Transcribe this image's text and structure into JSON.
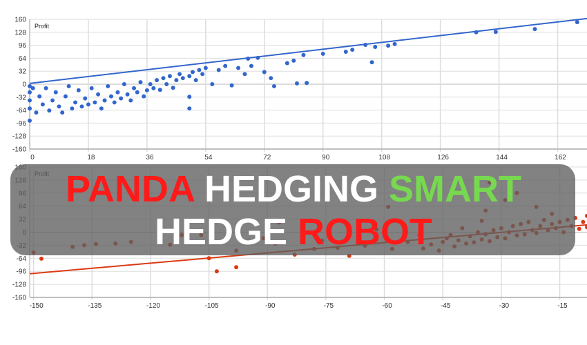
{
  "chart_data": [
    {
      "type": "scatter",
      "ylabel": "Profit",
      "xlim": [
        0,
        171
      ],
      "ylim": [
        -160,
        160
      ],
      "xticks": [
        "0",
        "18",
        "36",
        "54",
        "72",
        "90",
        "108",
        "126",
        "144",
        "162"
      ],
      "yticks": [
        "160",
        "128",
        "96",
        "64",
        "32",
        "0",
        "-32",
        "-64",
        "-96",
        "-128",
        "-160"
      ],
      "grid": true,
      "color": "#3366cc",
      "trendline": {
        "x": [
          0,
          171
        ],
        "y": [
          2,
          162
        ]
      },
      "points": [
        [
          0,
          -5
        ],
        [
          0,
          -20
        ],
        [
          0,
          -40
        ],
        [
          0,
          -60
        ],
        [
          0,
          -90
        ],
        [
          1,
          -10
        ],
        [
          2,
          -70
        ],
        [
          3,
          -30
        ],
        [
          4,
          -50
        ],
        [
          5,
          -10
        ],
        [
          6,
          -65
        ],
        [
          7,
          -40
        ],
        [
          8,
          -20
        ],
        [
          9,
          -55
        ],
        [
          10,
          -70
        ],
        [
          11,
          -30
        ],
        [
          12,
          -5
        ],
        [
          13,
          -60
        ],
        [
          14,
          -45
        ],
        [
          15,
          -15
        ],
        [
          16,
          -55
        ],
        [
          17,
          -35
        ],
        [
          18,
          -50
        ],
        [
          19,
          -10
        ],
        [
          20,
          -45
        ],
        [
          21,
          -25
        ],
        [
          22,
          -60
        ],
        [
          23,
          -40
        ],
        [
          24,
          -5
        ],
        [
          25,
          -30
        ],
        [
          26,
          -45
        ],
        [
          27,
          -20
        ],
        [
          28,
          -35
        ],
        [
          29,
          0
        ],
        [
          30,
          -25
        ],
        [
          31,
          -40
        ],
        [
          32,
          -10
        ],
        [
          33,
          -20
        ],
        [
          34,
          5
        ],
        [
          35,
          -30
        ],
        [
          36,
          -15
        ],
        [
          37,
          0
        ],
        [
          38,
          -10
        ],
        [
          39,
          10
        ],
        [
          40,
          -14
        ],
        [
          41,
          15
        ],
        [
          42,
          0
        ],
        [
          43,
          20
        ],
        [
          44,
          -9
        ],
        [
          45,
          10
        ],
        [
          46,
          25
        ],
        [
          47,
          15
        ],
        [
          49,
          -31
        ],
        [
          49,
          -60
        ],
        [
          49,
          20
        ],
        [
          50,
          30
        ],
        [
          51,
          10
        ],
        [
          52,
          35
        ],
        [
          53,
          25
        ],
        [
          54,
          40
        ],
        [
          56,
          0
        ],
        [
          58,
          35
        ],
        [
          60,
          45
        ],
        [
          62,
          -3
        ],
        [
          64,
          40
        ],
        [
          66,
          25
        ],
        [
          67,
          63
        ],
        [
          68,
          45
        ],
        [
          70,
          65
        ],
        [
          72,
          30
        ],
        [
          74,
          15
        ],
        [
          75,
          -5
        ],
        [
          79,
          52
        ],
        [
          81,
          58
        ],
        [
          82,
          2
        ],
        [
          84,
          72
        ],
        [
          85,
          3
        ],
        [
          90,
          75
        ],
        [
          97,
          80
        ],
        [
          99,
          85
        ],
        [
          103,
          97
        ],
        [
          105,
          54
        ],
        [
          106,
          92
        ],
        [
          110,
          95
        ],
        [
          112,
          99
        ],
        [
          137,
          128
        ],
        [
          143,
          129
        ],
        [
          155,
          136
        ],
        [
          168,
          153
        ]
      ]
    },
    {
      "type": "scatter",
      "ylabel": "Profit",
      "xlim": [
        -151,
        -8
      ],
      "ylim": [
        -160,
        160
      ],
      "xticks": [
        "-150",
        "-135",
        "-120",
        "-105",
        "-90",
        "-75",
        "-60",
        "-45",
        "-30",
        "-15"
      ],
      "yticks": [
        "160",
        "128",
        "96",
        "64",
        "32",
        "0",
        "-32",
        "-64",
        "-96",
        "-128",
        "-160"
      ],
      "grid": true,
      "color": "#dc3912",
      "trendline": {
        "x": [
          -151,
          -8
        ],
        "y": [
          -102,
          18
        ]
      },
      "points": [
        [
          -150,
          -50
        ],
        [
          -148,
          -65
        ],
        [
          -140,
          -36
        ],
        [
          -137,
          -32
        ],
        [
          -134,
          -29
        ],
        [
          -129,
          -28
        ],
        [
          -125,
          -24
        ],
        [
          -115,
          -31
        ],
        [
          -112,
          -7
        ],
        [
          -107,
          -7
        ],
        [
          -105,
          -64
        ],
        [
          -103,
          -96
        ],
        [
          -98,
          -86
        ],
        [
          -98,
          -45
        ],
        [
          -95,
          -24
        ],
        [
          -91,
          -15
        ],
        [
          -88,
          -28
        ],
        [
          -87,
          24
        ],
        [
          -83,
          -55
        ],
        [
          -78,
          -41
        ],
        [
          -76,
          -21
        ],
        [
          -72,
          -38
        ],
        [
          -69,
          -58
        ],
        [
          -65,
          -33
        ],
        [
          -62,
          7
        ],
        [
          -59,
          62
        ],
        [
          -58,
          -41
        ],
        [
          -54,
          -24
        ],
        [
          -51,
          -7
        ],
        [
          -50,
          -40
        ],
        [
          -48,
          -30
        ],
        [
          -46,
          -45
        ],
        [
          -45,
          -24
        ],
        [
          -44,
          -15
        ],
        [
          -43,
          -7
        ],
        [
          -42,
          -35
        ],
        [
          -41,
          -20
        ],
        [
          -40,
          10
        ],
        [
          -39,
          -28
        ],
        [
          -38,
          -10
        ],
        [
          -37,
          -25
        ],
        [
          -36,
          0
        ],
        [
          -35,
          28
        ],
        [
          -35,
          -18
        ],
        [
          -34,
          53
        ],
        [
          -34,
          -5
        ],
        [
          -33,
          122
        ],
        [
          -33,
          -22
        ],
        [
          -32,
          5
        ],
        [
          -31,
          -12
        ],
        [
          -30,
          10
        ],
        [
          -29,
          79
        ],
        [
          -29,
          -15
        ],
        [
          -28,
          127
        ],
        [
          -28,
          0
        ],
        [
          -27,
          15
        ],
        [
          -26,
          96
        ],
        [
          -26,
          -8
        ],
        [
          -25,
          20
        ],
        [
          -24,
          -5
        ],
        [
          -23,
          25
        ],
        [
          -22,
          5
        ],
        [
          -21,
          62
        ],
        [
          -21,
          -2
        ],
        [
          -20,
          15
        ],
        [
          -19,
          30
        ],
        [
          -18,
          5
        ],
        [
          -17,
          45
        ],
        [
          -17,
          20
        ],
        [
          -16,
          10
        ],
        [
          -15,
          25
        ],
        [
          -14,
          0
        ],
        [
          -13,
          30
        ],
        [
          -12,
          15
        ],
        [
          -11,
          35
        ],
        [
          -10,
          8
        ],
        [
          -9,
          25
        ],
        [
          -8,
          40
        ],
        [
          -8,
          12
        ]
      ]
    }
  ],
  "banner": {
    "line1": [
      {
        "text": "PANDA",
        "color": "#ff1a1a"
      },
      {
        "text": "HEDGING",
        "color": "#ffffff"
      },
      {
        "text": "SMART",
        "color": "#77d94f"
      }
    ],
    "line2": [
      {
        "text": "HEDGE",
        "color": "#ffffff"
      },
      {
        "text": "ROBOT",
        "color": "#ff1a1a"
      }
    ]
  }
}
